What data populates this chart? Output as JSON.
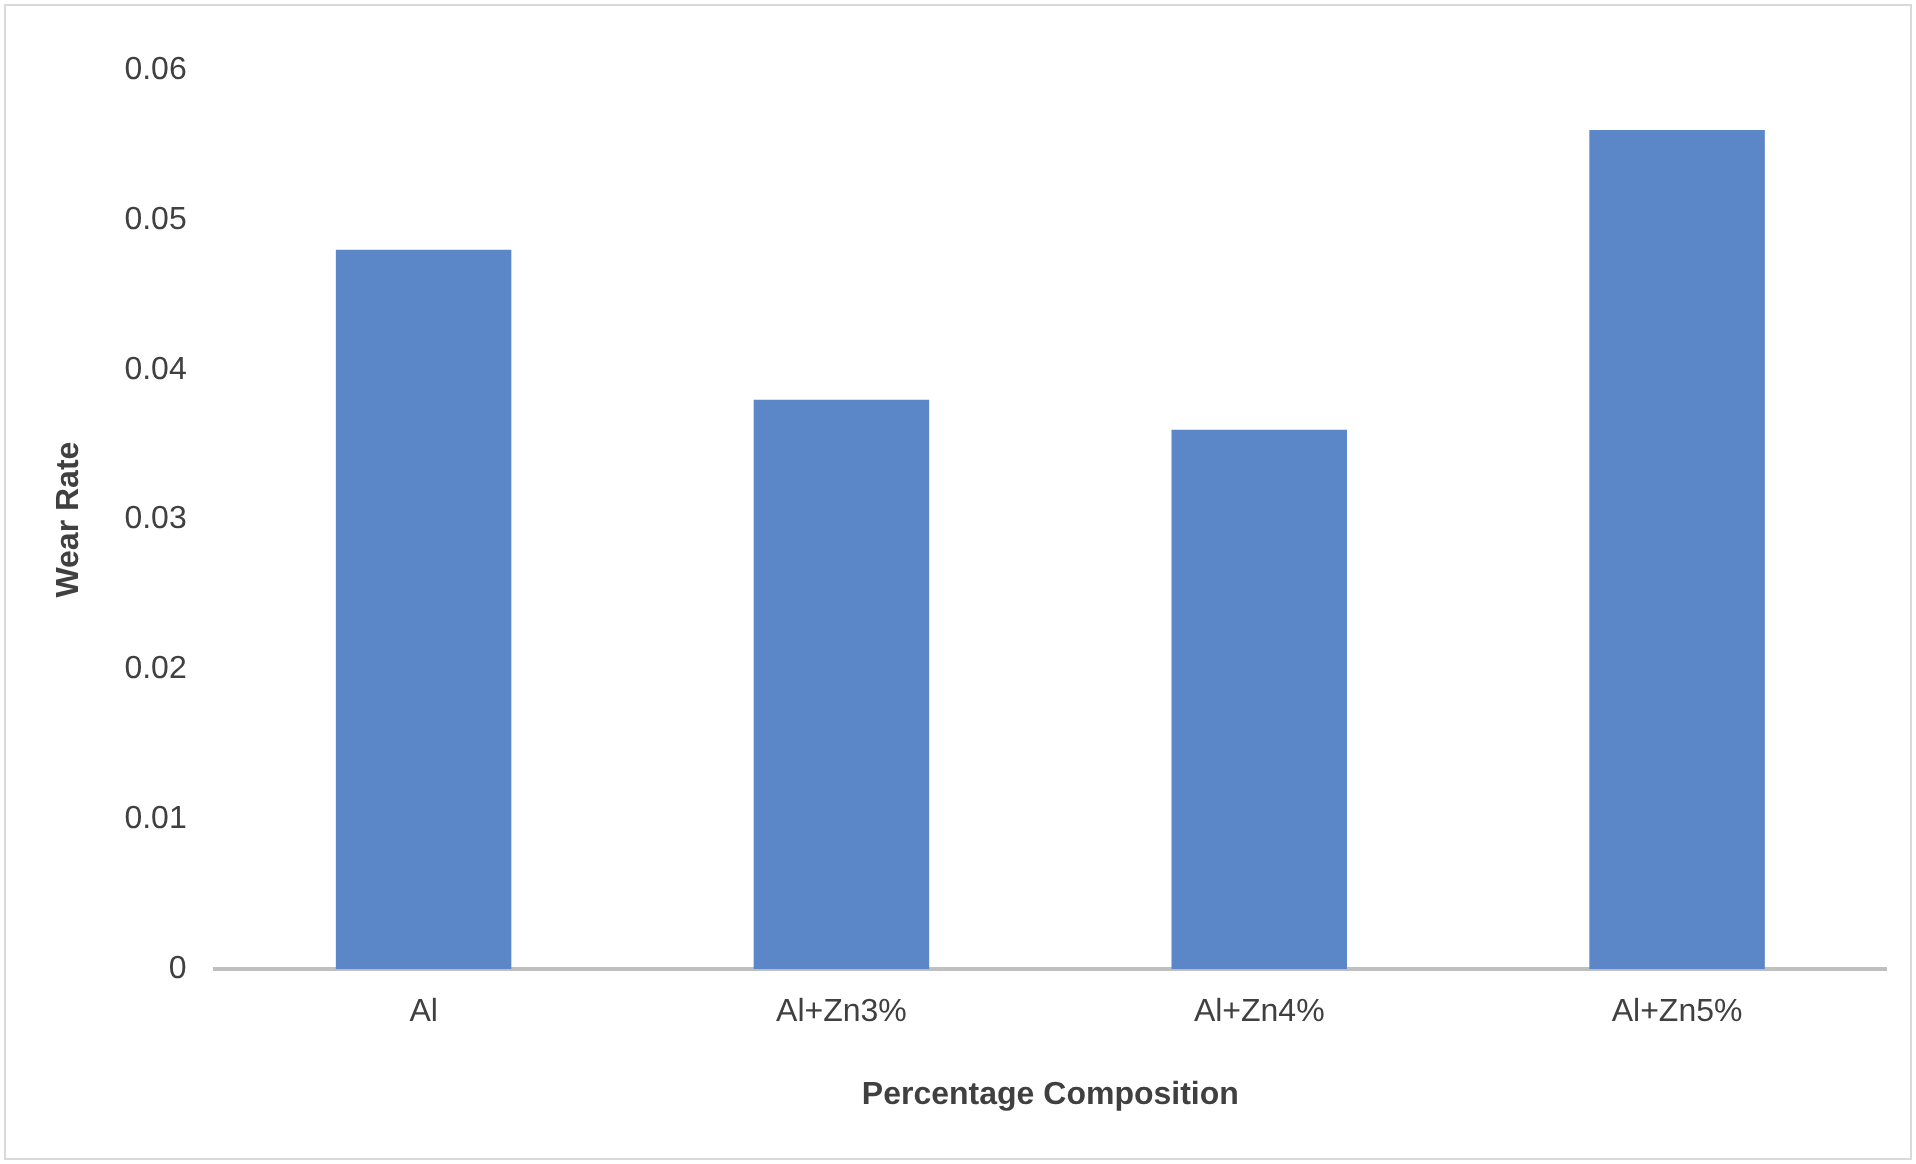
{
  "chart_data": {
    "type": "bar",
    "xlabel": "Percentage Composition",
    "ylabel": "Wear Rate",
    "categories": [
      "Al",
      "Al+Zn3%",
      "Al+Zn4%",
      "Al+Zn5%"
    ],
    "values": [
      0.048,
      0.038,
      0.036,
      0.056
    ],
    "color": "#5b86c8",
    "ylim": [
      0,
      0.06
    ],
    "yticks": [
      0,
      0.01,
      0.02,
      0.03,
      0.04,
      0.05,
      0.06
    ],
    "grid": false,
    "legend": false
  }
}
